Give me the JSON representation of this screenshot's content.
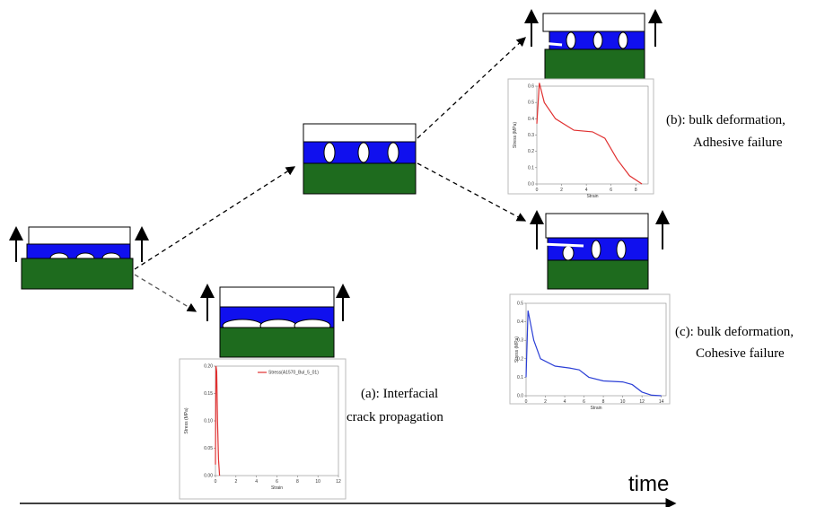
{
  "labels": {
    "a1": "(a): Interfacial",
    "a2": "crack propagation",
    "b1": "(b): bulk deformation,",
    "b2": "Adhesive failure",
    "c1": "(c): bulk deformation,",
    "c2": "Cohesive failure",
    "time": "time"
  },
  "chart_data": [
    {
      "type": "line",
      "xlabel": "Strain",
      "ylabel": "Stress (MPa)",
      "xlim": [
        0,
        12
      ],
      "ylim": [
        0,
        0.2
      ],
      "xticks": [
        0,
        2,
        4,
        6,
        8,
        10,
        12
      ],
      "yticks": [
        {
          "value": 0,
          "label": "0.00"
        },
        {
          "value": 0.05,
          "label": "0.05"
        },
        {
          "value": 0.1,
          "label": "0.10"
        },
        {
          "value": 0.15,
          "label": "0.15"
        },
        {
          "value": 0.2,
          "label": "0.20"
        }
      ],
      "series": [
        {
          "name": "Stress(A1570_Bul_5_01)",
          "color": "#e03030",
          "x": [
            0,
            0.05,
            0.12,
            0.2,
            0.3,
            0.4
          ],
          "values": [
            0.02,
            0.2,
            0.19,
            0.1,
            0.03,
            0
          ]
        }
      ]
    },
    {
      "type": "line",
      "xlabel": "Strain",
      "ylabel": "Stress (MPa)",
      "xlim": [
        0,
        9
      ],
      "ylim": [
        0,
        0.6
      ],
      "xticks": [
        0,
        2,
        4,
        6,
        8
      ],
      "yticks": [
        {
          "value": 0,
          "label": "0.0"
        },
        {
          "value": 0.1,
          "label": "0.1"
        },
        {
          "value": 0.2,
          "label": "0.2"
        },
        {
          "value": 0.3,
          "label": "0.3"
        },
        {
          "value": 0.4,
          "label": "0.4"
        },
        {
          "value": 0.5,
          "label": "0.5"
        },
        {
          "value": 0.6,
          "label": "0.6"
        }
      ],
      "series": [
        {
          "name": null,
          "color": "#e03030",
          "x": [
            0,
            0.2,
            0.6,
            1.5,
            3,
            4.5,
            5.5,
            6.5,
            7.5,
            8.5
          ],
          "values": [
            0.37,
            0.62,
            0.5,
            0.4,
            0.33,
            0.32,
            0.28,
            0.15,
            0.05,
            0
          ]
        }
      ]
    },
    {
      "type": "line",
      "xlabel": "Strain",
      "ylabel": "Stress (MPa)",
      "xlim": [
        0,
        14.5
      ],
      "ylim": [
        0,
        0.5
      ],
      "xticks": [
        0,
        2,
        4,
        6,
        8,
        10,
        12,
        14
      ],
      "yticks": [
        {
          "value": 0,
          "label": "0.0"
        },
        {
          "value": 0.1,
          "label": "0.1"
        },
        {
          "value": 0.2,
          "label": "0.2"
        },
        {
          "value": 0.3,
          "label": "0.3"
        },
        {
          "value": 0.4,
          "label": "0.4"
        },
        {
          "value": 0.5,
          "label": "0.5"
        }
      ],
      "series": [
        {
          "name": null,
          "color": "#2b3fd6",
          "x": [
            0,
            0.2,
            0.8,
            1.5,
            3,
            4.5,
            5.5,
            6.5,
            8,
            10,
            11,
            12,
            13,
            14
          ],
          "values": [
            0.1,
            0.46,
            0.3,
            0.2,
            0.16,
            0.15,
            0.14,
            0.1,
            0.08,
            0.075,
            0.06,
            0.02,
            0.003,
            0
          ]
        }
      ]
    }
  ]
}
